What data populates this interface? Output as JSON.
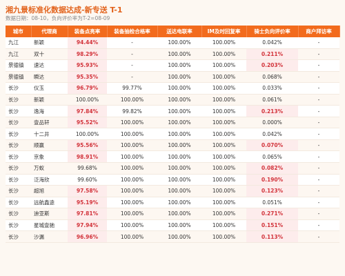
{
  "header": {
    "title": "湘九景标准化数据达成-新专送 T-1",
    "subtitle": "数据日期：08-10，负向评价率为T-2=08-09"
  },
  "table": {
    "columns": [
      "城市",
      "代理商",
      "装备点亮率",
      "装备抽检合格率",
      "送达电联率",
      "IM及时回复率",
      "骑士负向评价率",
      "商户拜访率"
    ],
    "rows": [
      [
        "九江",
        "新颖",
        "94.44%",
        "-",
        "100.00%",
        "100.00%",
        "0.042%",
        "-"
      ],
      [
        "九江",
        "双十",
        "98.29%",
        "-",
        "100.00%",
        "100.00%",
        "0.211%",
        "-"
      ],
      [
        "景德镇",
        "速达",
        "95.93%",
        "-",
        "100.00%",
        "100.00%",
        "0.203%",
        "-"
      ],
      [
        "景德镇",
        "瞬达",
        "95.35%",
        "-",
        "100.00%",
        "100.00%",
        "0.068%",
        "-"
      ],
      [
        "长沙",
        "仪玉",
        "96.79%",
        "99.77%",
        "100.00%",
        "100.00%",
        "0.033%",
        "-"
      ],
      [
        "长沙",
        "新颖",
        "100.00%",
        "100.00%",
        "100.00%",
        "100.00%",
        "0.061%",
        "-"
      ],
      [
        "长沙",
        "逸海",
        "97.84%",
        "99.82%",
        "100.00%",
        "100.00%",
        "0.213%",
        "-"
      ],
      [
        "长沙",
        "壹品轩",
        "95.52%",
        "100.00%",
        "100.00%",
        "100.00%",
        "0.000%",
        "-"
      ],
      [
        "长沙",
        "十二井",
        "100.00%",
        "100.00%",
        "100.00%",
        "100.00%",
        "0.042%",
        "-"
      ],
      [
        "长沙",
        "顺赢",
        "95.56%",
        "100.00%",
        "100.00%",
        "100.00%",
        "0.070%",
        "-"
      ],
      [
        "长沙",
        "京象",
        "98.91%",
        "100.00%",
        "100.00%",
        "100.00%",
        "0.065%",
        "-"
      ],
      [
        "长沙",
        "万蚁",
        "99.68%",
        "100.00%",
        "100.00%",
        "100.00%",
        "0.082%",
        "-"
      ],
      [
        "长沙",
        "泛海欣",
        "99.60%",
        "100.00%",
        "100.00%",
        "100.00%",
        "0.190%",
        "-"
      ],
      [
        "长沙",
        "超旭",
        "97.58%",
        "100.00%",
        "100.00%",
        "100.00%",
        "0.123%",
        "-"
      ],
      [
        "长沙",
        "远航鑫途",
        "95.19%",
        "100.00%",
        "100.00%",
        "100.00%",
        "0.051%",
        "-"
      ],
      [
        "长沙",
        "迪亚斯",
        "97.81%",
        "100.00%",
        "100.00%",
        "100.00%",
        "0.271%",
        "-"
      ],
      [
        "长沙",
        "星城壹驰",
        "97.94%",
        "100.00%",
        "100.00%",
        "100.00%",
        "0.151%",
        "-"
      ],
      [
        "长沙",
        "沙漏",
        "96.96%",
        "100.00%",
        "100.00%",
        "100.00%",
        "0.113%",
        "-"
      ]
    ],
    "highlighted_cells": [
      [
        0,
        2
      ],
      [
        1,
        2
      ],
      [
        2,
        2
      ],
      [
        3,
        2
      ],
      [
        4,
        2
      ],
      [
        6,
        2
      ],
      [
        7,
        2
      ],
      [
        9,
        2
      ],
      [
        10,
        2
      ],
      [
        13,
        2
      ],
      [
        14,
        2
      ],
      [
        15,
        2
      ],
      [
        16,
        2
      ],
      [
        17,
        2
      ],
      [
        1,
        6
      ],
      [
        2,
        6
      ],
      [
        6,
        6
      ],
      [
        9,
        6
      ],
      [
        11,
        6
      ],
      [
        12,
        6
      ],
      [
        13,
        6
      ],
      [
        15,
        6
      ],
      [
        16,
        6
      ],
      [
        17,
        6
      ]
    ]
  }
}
